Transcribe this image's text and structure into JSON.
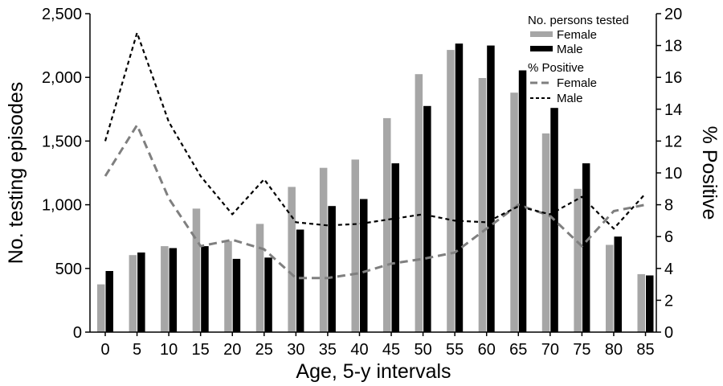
{
  "chart_data": {
    "type": "bar",
    "xlabel": "Age, 5-y intervals",
    "ylabel": "No. testing episodes",
    "y2label": "% Positive",
    "ylim": [
      0,
      2500
    ],
    "y2lim": [
      0,
      20
    ],
    "yticks": [
      "0",
      "500",
      "1,000",
      "1,500",
      "2,000",
      "2,500"
    ],
    "y2ticks": [
      "0",
      "2",
      "4",
      "6",
      "8",
      "10",
      "12",
      "14",
      "16",
      "18",
      "20"
    ],
    "categories": [
      "0",
      "5",
      "10",
      "15",
      "20",
      "25",
      "30",
      "35",
      "40",
      "45",
      "50",
      "55",
      "60",
      "65",
      "70",
      "75",
      "80",
      "85"
    ],
    "grid": false,
    "legend_position": "top-right",
    "legend": {
      "bars_title": "No. persons tested",
      "lines_title": "% Positive"
    },
    "bar_series": [
      {
        "name": "Female",
        "color": "#a6a6a6",
        "values": [
          375,
          605,
          675,
          970,
          715,
          850,
          1140,
          1290,
          1355,
          1680,
          2025,
          2215,
          1995,
          1880,
          1560,
          1125,
          685,
          455
        ]
      },
      {
        "name": "Male",
        "color": "#000000",
        "values": [
          480,
          625,
          660,
          675,
          575,
          585,
          805,
          990,
          1045,
          1325,
          1775,
          2265,
          2250,
          2055,
          1760,
          1325,
          750,
          445
        ]
      }
    ],
    "line_series": [
      {
        "name": "Female",
        "color": "#7f7f7f",
        "dash": "long",
        "values": [
          9.8,
          13.0,
          8.4,
          5.4,
          5.8,
          5.2,
          3.4,
          3.4,
          3.7,
          4.3,
          4.6,
          5.0,
          6.5,
          8.0,
          7.3,
          5.4,
          7.6,
          8.0
        ]
      },
      {
        "name": "Male",
        "color": "#000000",
        "dash": "short",
        "values": [
          12.0,
          18.8,
          13.2,
          9.8,
          7.4,
          9.6,
          6.9,
          6.7,
          6.8,
          7.1,
          7.4,
          7.0,
          6.9,
          7.9,
          7.4,
          8.5,
          6.5,
          8.7
        ]
      }
    ]
  }
}
